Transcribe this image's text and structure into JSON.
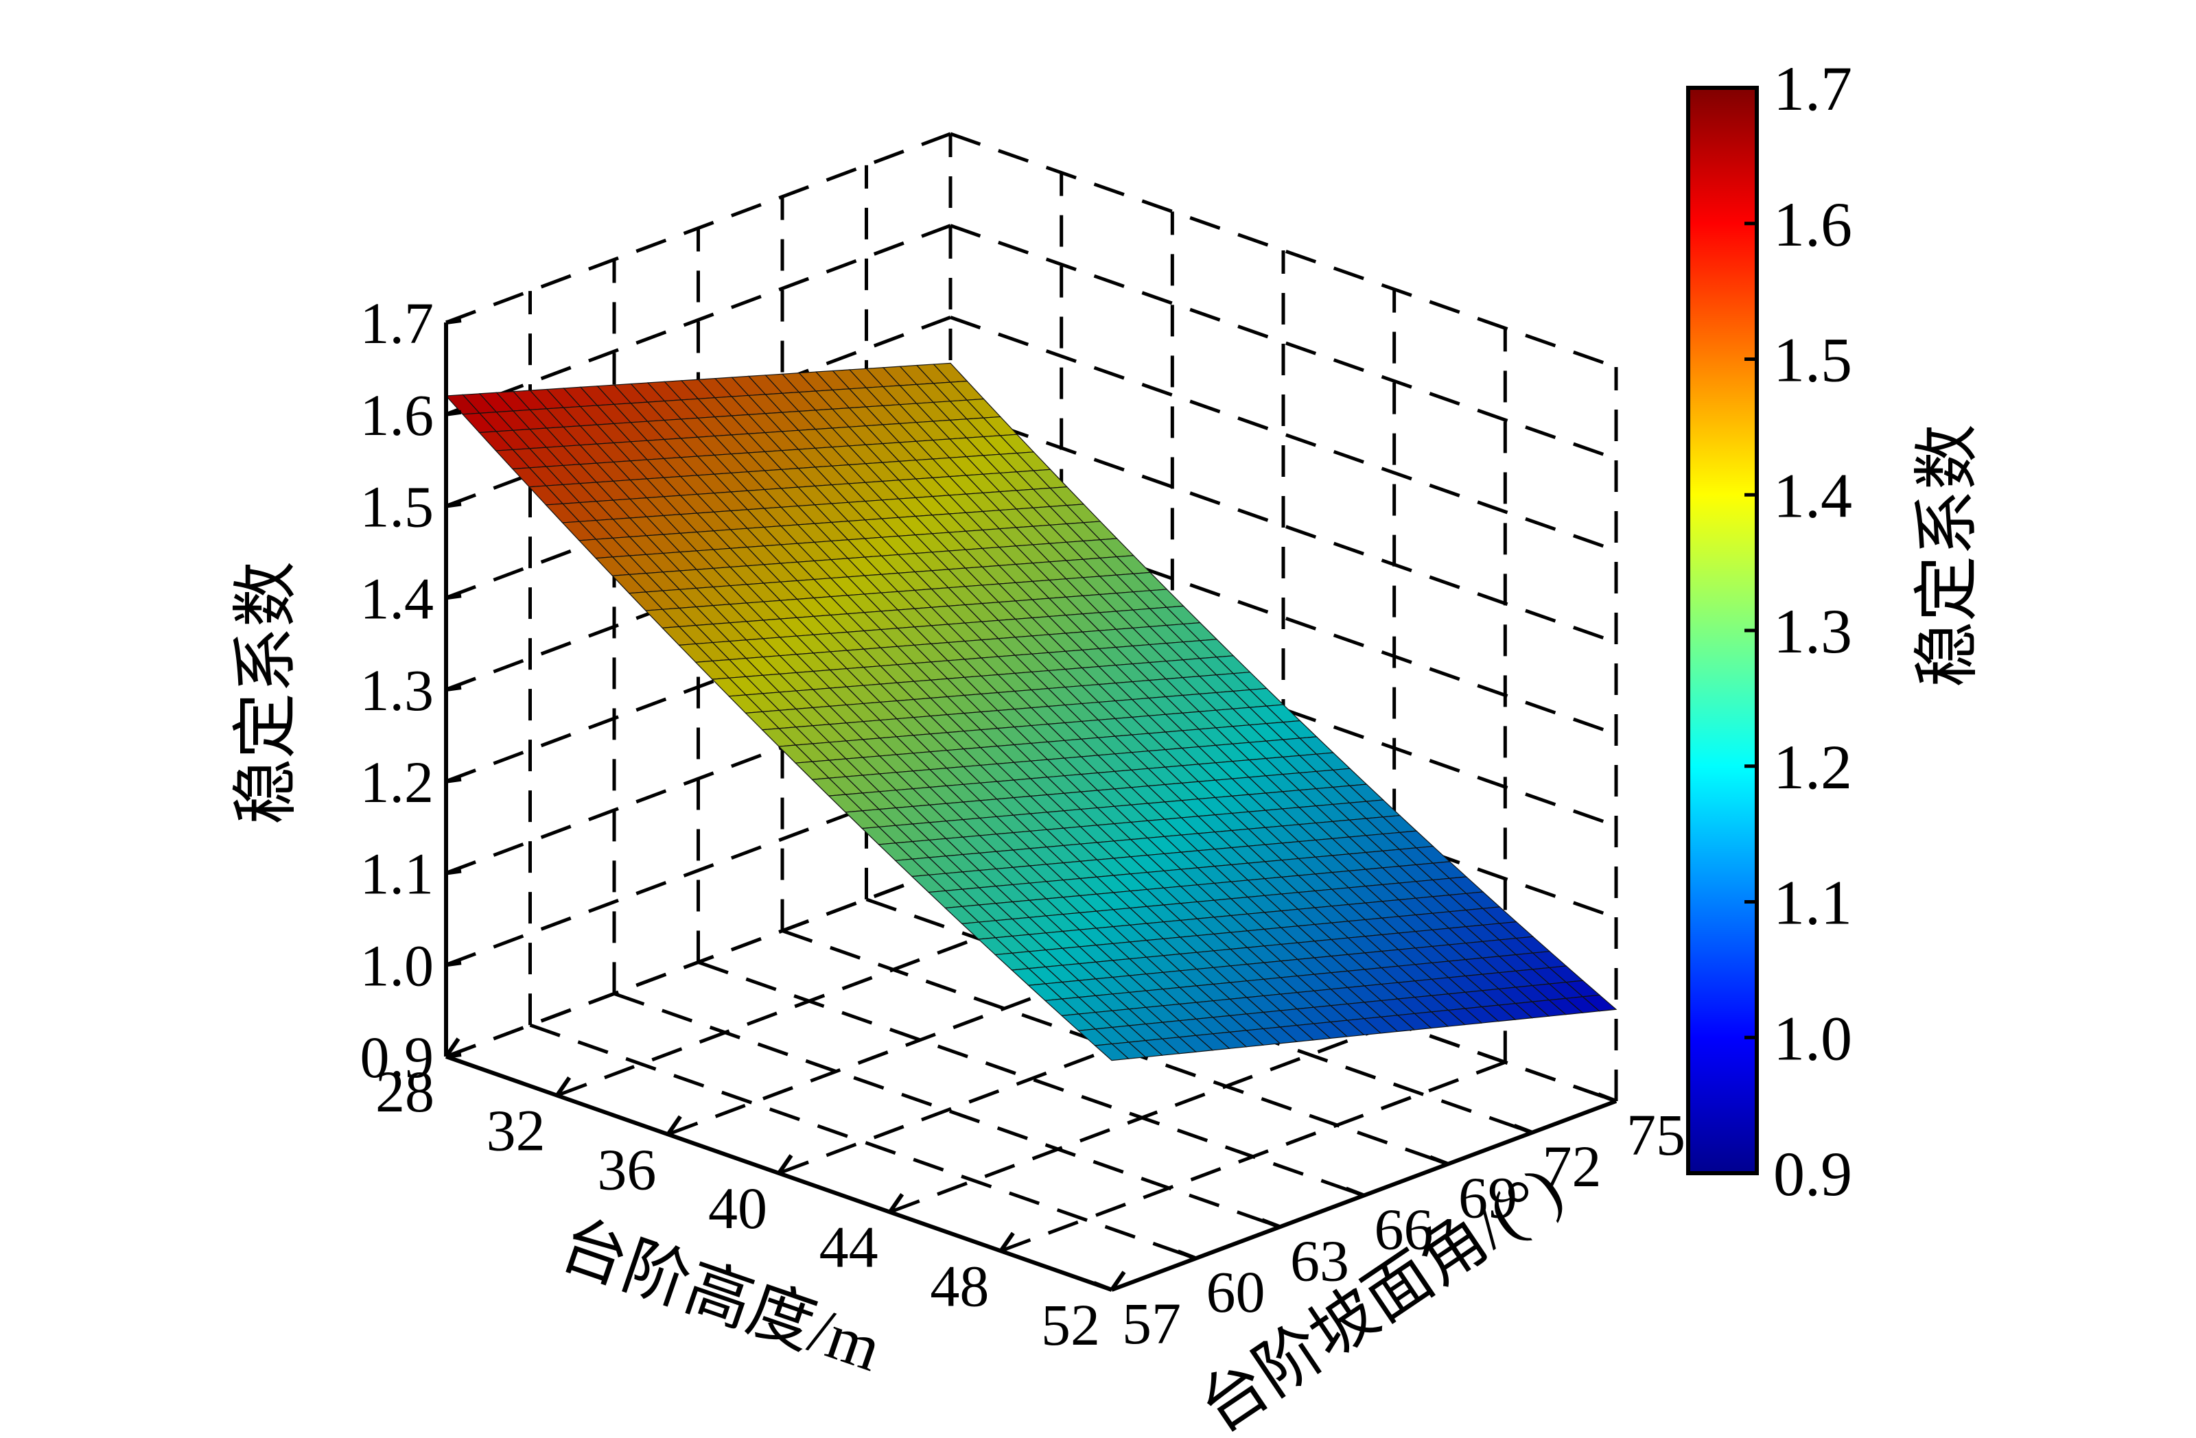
{
  "chart_data": {
    "type": "surface",
    "title": "",
    "xlabel": "台阶高度/m",
    "ylabel": "台阶坡面角/(°)",
    "zlabel": "稳定系数",
    "colorbar_label": "稳定系数",
    "colormap": "jet",
    "x_ticks": [
      "28",
      "32",
      "36",
      "40",
      "44",
      "48",
      "52"
    ],
    "y_ticks": [
      "57",
      "60",
      "63",
      "66",
      "69",
      "72",
      "75"
    ],
    "z_ticks": [
      "0.9",
      "1.0",
      "1.1",
      "1.2",
      "1.3",
      "1.4",
      "1.5",
      "1.6",
      "1.7"
    ],
    "colorbar_ticks": [
      "0.9",
      "1.0",
      "1.1",
      "1.2",
      "1.3",
      "1.4",
      "1.5",
      "1.6",
      "1.7"
    ],
    "xlim": [
      28,
      52
    ],
    "ylim": [
      57,
      75
    ],
    "zlim": [
      0.9,
      1.7
    ],
    "clim": [
      0.9,
      1.7
    ],
    "grid": true,
    "surface_corners": [
      {
        "x": 28,
        "y": 57,
        "z": 1.62
      },
      {
        "x": 28,
        "y": 75,
        "z": 1.45
      },
      {
        "x": 52,
        "y": 57,
        "z": 1.15
      },
      {
        "x": 52,
        "y": 75,
        "z": 1.0
      }
    ]
  }
}
